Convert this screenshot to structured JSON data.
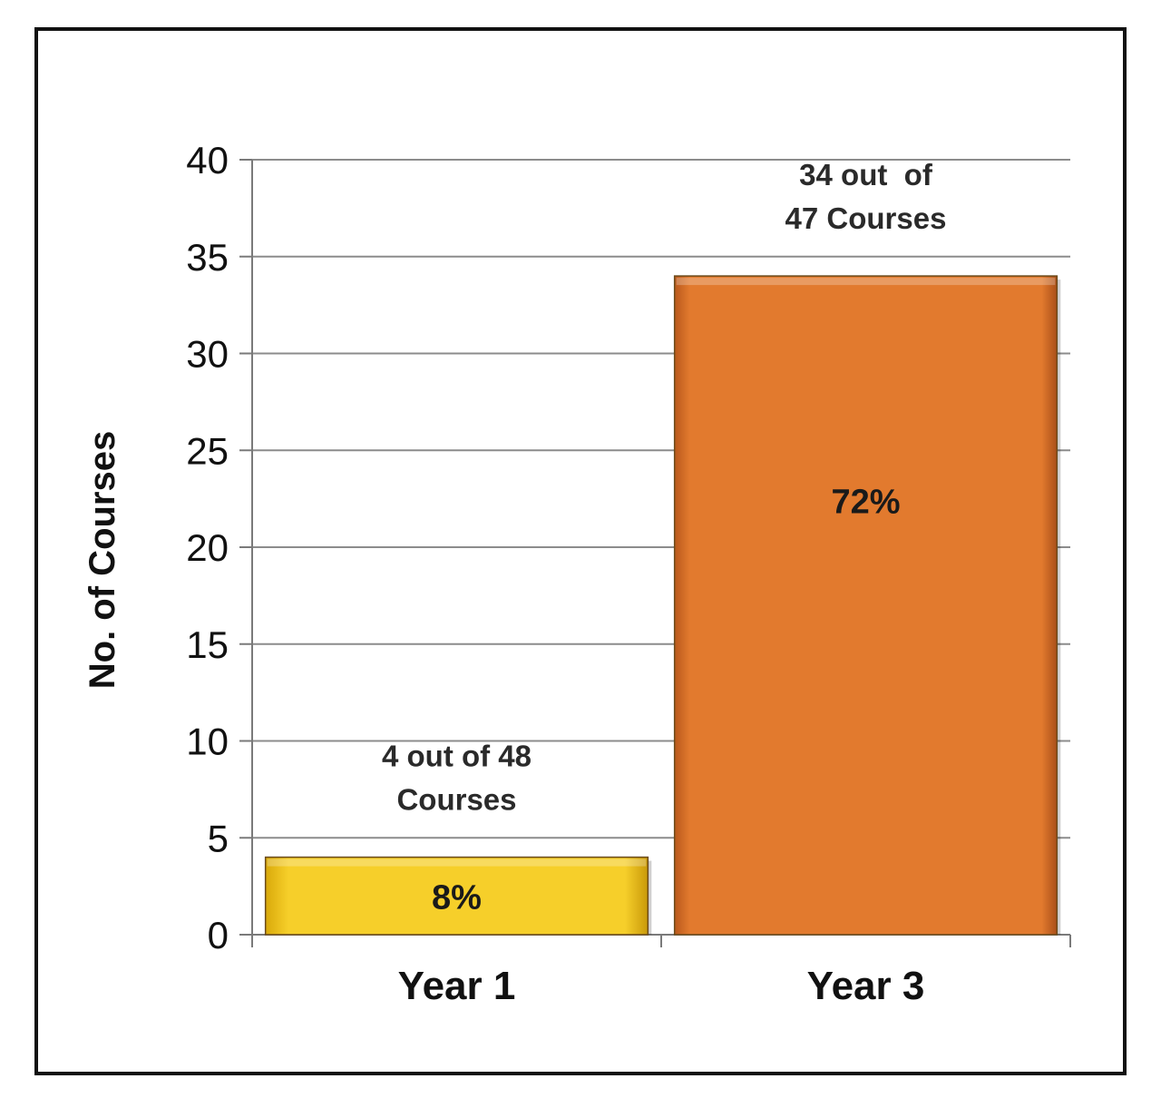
{
  "chart_data": {
    "type": "bar",
    "title": "",
    "xlabel": "",
    "ylabel": "No. of Courses",
    "ylim": [
      0,
      40
    ],
    "yticks": [
      0,
      5,
      10,
      15,
      20,
      25,
      30,
      35,
      40
    ],
    "grid": true,
    "legend": "none",
    "categories": [
      "Year 1",
      "Year 3"
    ],
    "values": [
      4,
      34
    ],
    "bar_colors": [
      "#f2c418",
      "#e0782c"
    ],
    "percent_labels": [
      "8%",
      "72%"
    ],
    "annotations": [
      [
        "4 out of 48",
        "Courses"
      ],
      [
        "34 out  of",
        "47 Courses"
      ]
    ]
  }
}
